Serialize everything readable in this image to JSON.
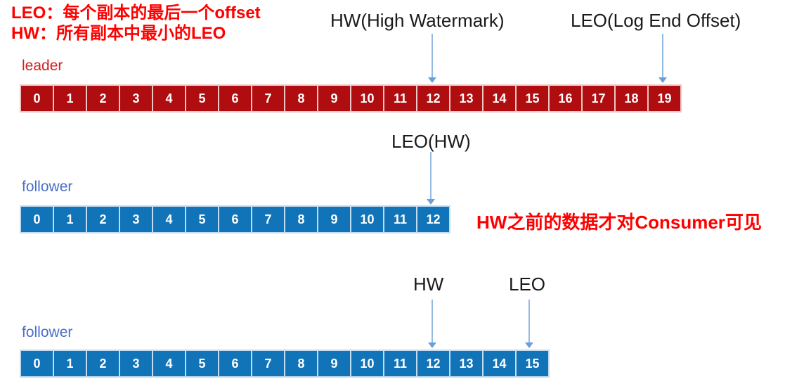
{
  "colors": {
    "leader_cell": "#B00D10",
    "leader_gap": "#EDC6C5",
    "follower_cell": "#1173B8",
    "follower_gap": "#C3DCEF",
    "leader_label": "#CD1F1F",
    "follower_label": "#4A6EC8",
    "annotation_red": "#FF0000",
    "label_black": "#1A1A1A",
    "arrow_line": "#95BAE2",
    "arrow_head": "#6B9FD8",
    "cell_number": "#FFFFFF"
  },
  "annotations": {
    "definition_line1": "LEO：每个副本的最后一个offset",
    "definition_line2": "HW：所有副本中最小的LEO",
    "hw_full_label": "HW(High Watermark)",
    "leo_full_label": "LEO(Log End Offset)",
    "leo_hw_label": "LEO(HW)",
    "hw_short_label": "HW",
    "leo_short_label": "LEO",
    "consumer_note": "HW之前的数据才对Consumer可见"
  },
  "rows": [
    {
      "label": "leader",
      "type": "leader",
      "cells": [
        "0",
        "1",
        "2",
        "3",
        "4",
        "5",
        "6",
        "7",
        "8",
        "9",
        "10",
        "11",
        "12",
        "13",
        "14",
        "15",
        "16",
        "17",
        "18",
        "19"
      ],
      "hw_offset": "12",
      "leo_offset": "19"
    },
    {
      "label": "follower",
      "type": "follower",
      "cells": [
        "0",
        "1",
        "2",
        "3",
        "4",
        "5",
        "6",
        "7",
        "8",
        "9",
        "10",
        "11",
        "12"
      ],
      "leo_hw_offset": "12"
    },
    {
      "label": "follower",
      "type": "follower",
      "cells": [
        "0",
        "1",
        "2",
        "3",
        "4",
        "5",
        "6",
        "7",
        "8",
        "9",
        "10",
        "11",
        "12",
        "13",
        "14",
        "15"
      ],
      "hw_offset": "12",
      "leo_offset": "15"
    }
  ]
}
